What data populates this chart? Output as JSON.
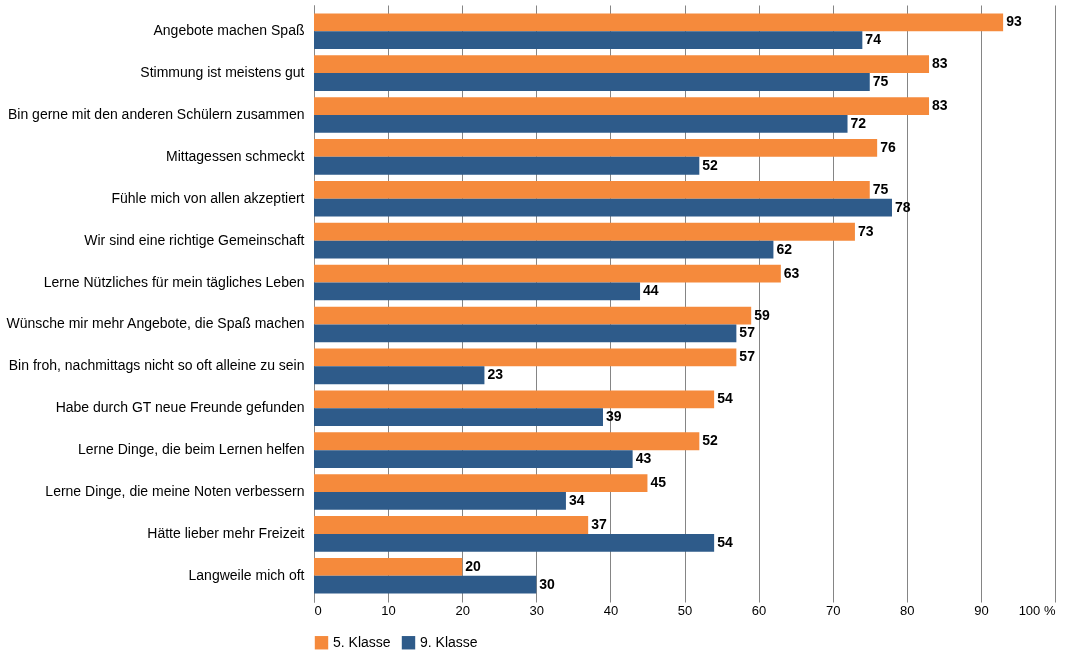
{
  "chart_data": {
    "type": "bar",
    "orientation": "horizontal",
    "categories": [
      "Angebote machen Spaß",
      "Stimmung ist meistens gut",
      "Bin gerne mit den anderen Schülern zusammen",
      "Mittagessen schmeckt",
      "Fühle mich von allen akzeptiert",
      "Wir sind eine richtige Gemeinschaft",
      "Lerne Nützliches für mein tägliches Leben",
      "Wünsche mir mehr Angebote, die Spaß machen",
      "Bin froh, nachmittags nicht so oft alleine zu sein",
      "Habe durch GT neue Freunde gefunden",
      "Lerne Dinge, die beim Lernen helfen",
      "Lerne Dinge, die meine Noten verbessern",
      "Hätte lieber mehr Freizeit",
      "Langweile mich oft"
    ],
    "series": [
      {
        "name": "5. Klasse",
        "color": "#f58a3c",
        "values": [
          93,
          83,
          83,
          76,
          75,
          73,
          63,
          59,
          57,
          54,
          52,
          45,
          37,
          20
        ]
      },
      {
        "name": "9. Klasse",
        "color": "#2e5b8a",
        "values": [
          74,
          75,
          72,
          52,
          78,
          62,
          44,
          57,
          23,
          39,
          43,
          34,
          54,
          30
        ]
      }
    ],
    "xlim": [
      0,
      100
    ],
    "xticks": [
      0,
      10,
      20,
      30,
      40,
      50,
      60,
      70,
      80,
      90,
      {
        "value": 100,
        "label": "100 %"
      }
    ],
    "grid": "x",
    "legend": "bottom",
    "data_labels": true
  }
}
